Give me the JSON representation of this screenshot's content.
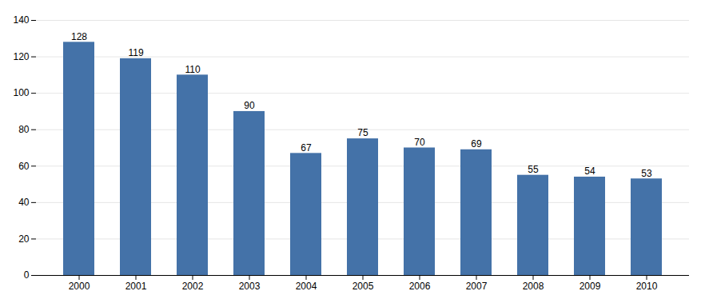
{
  "chart_data": {
    "type": "bar",
    "categories": [
      "2000",
      "2001",
      "2002",
      "2003",
      "2004",
      "2005",
      "2006",
      "2007",
      "2008",
      "2009",
      "2010"
    ],
    "values": [
      128,
      119,
      110,
      90,
      67,
      75,
      70,
      69,
      55,
      54,
      53
    ],
    "color": "#4472a8",
    "ylim": [
      0,
      140
    ],
    "yticks": [
      0,
      20,
      40,
      60,
      80,
      100,
      120,
      140
    ],
    "grid": true,
    "data_labels": true
  }
}
